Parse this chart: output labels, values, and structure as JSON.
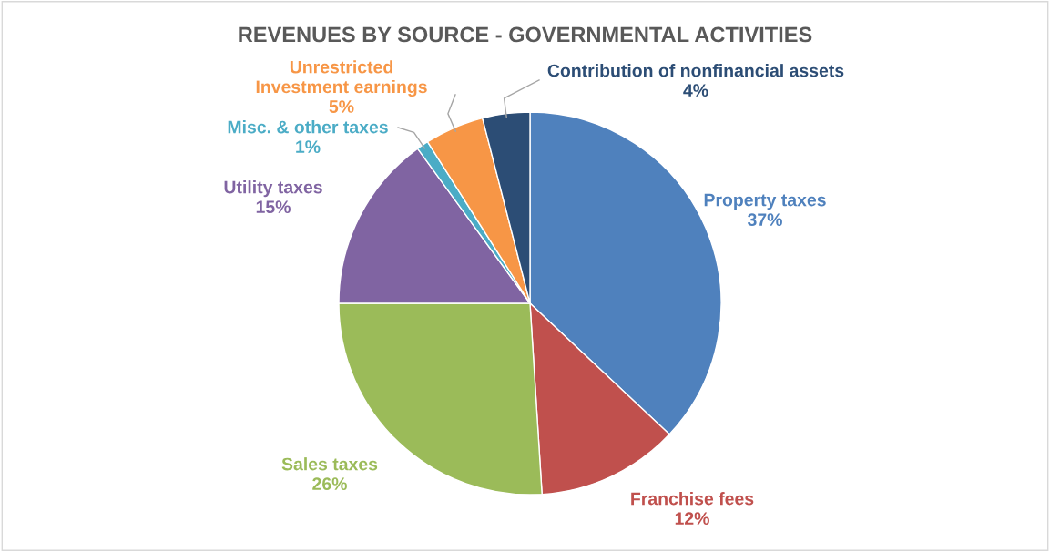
{
  "chart_data": {
    "type": "pie",
    "title": "REVENUES BY SOURCE - GOVERNMENTAL ACTIVITIES",
    "categories": [
      "Property taxes",
      "Franchise fees",
      "Sales taxes",
      "Utility taxes",
      "Misc. & other taxes",
      "Unrestricted\nInvestment earnings",
      "Contribution of nonfinancial assets"
    ],
    "values": [
      37,
      12,
      26,
      15,
      1,
      5,
      4
    ],
    "colors": [
      "#4f81bd",
      "#c0504d",
      "#9bbb59",
      "#8064a2",
      "#4bacc6",
      "#f79646",
      "#2c4d75"
    ],
    "value_labels": [
      "37%",
      "12%",
      "26%",
      "15%",
      "1%",
      "5%",
      "4%"
    ]
  }
}
